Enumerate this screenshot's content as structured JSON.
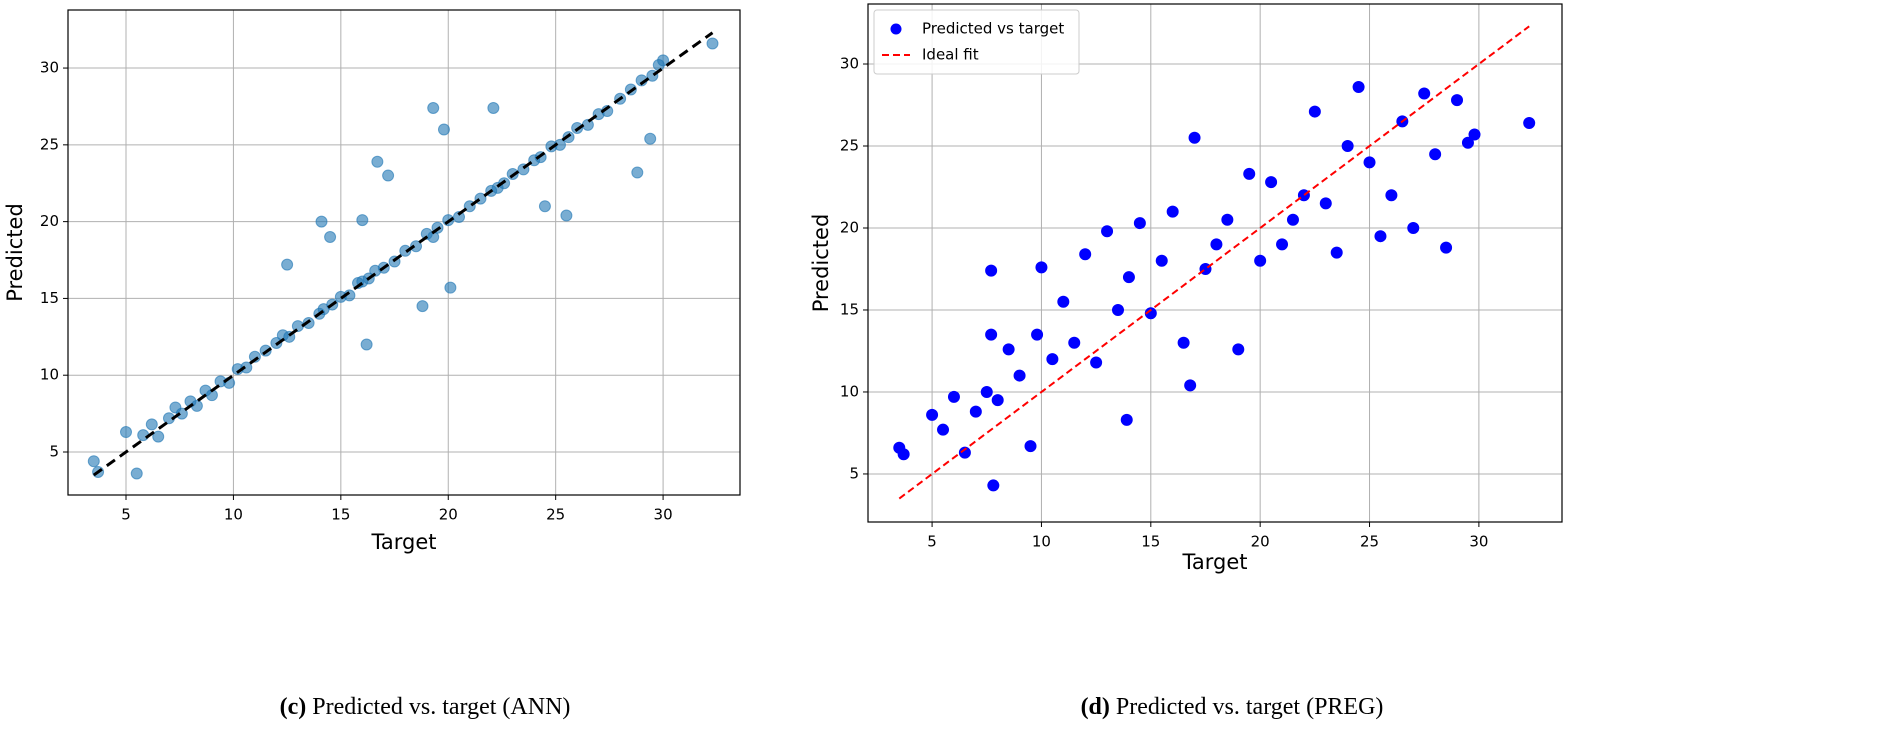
{
  "chart_data": [
    {
      "type": "scatter",
      "xlabel": "Target",
      "ylabel": "Predicted",
      "caption": {
        "label": "(c)",
        "text": "Predicted vs. target (ANN)"
      },
      "xlim": [
        2.3,
        33.58
      ],
      "ylim": [
        2.2,
        33.78
      ],
      "xticks": [
        5,
        10,
        15,
        20,
        25,
        30
      ],
      "yticks": [
        5,
        10,
        15,
        20,
        25,
        30
      ],
      "grid": true,
      "series": [
        {
          "type": "scatter",
          "color": "#1f77b4",
          "alpha": 0.6,
          "x": [
            3.5,
            3.7,
            5.0,
            5.5,
            5.8,
            6.2,
            6.5,
            7.0,
            7.3,
            7.6,
            8.0,
            8.3,
            8.7,
            9.0,
            9.4,
            9.8,
            10.2,
            10.6,
            11.0,
            11.5,
            12.0,
            12.3,
            12.6,
            13.0,
            13.5,
            14.0,
            14.2,
            14.6,
            15.0,
            15.4,
            15.8,
            16.0,
            16.3,
            16.6,
            17.0,
            17.5,
            18.0,
            18.5,
            19.0,
            19.3,
            19.5,
            20.0,
            20.5,
            21.0,
            21.5,
            22.0,
            22.3,
            22.6,
            23.0,
            23.5,
            24.0,
            24.3,
            24.8,
            25.2,
            25.6,
            26.0,
            26.5,
            27.0,
            27.4,
            28.0,
            28.5,
            29.0,
            29.5,
            29.8,
            30.0,
            32.3,
            12.5,
            14.1,
            14.5,
            16.2,
            16.7,
            17.2,
            19.3,
            19.8,
            22.1,
            24.5,
            25.5,
            28.8,
            29.4,
            16.0,
            18.8,
            20.1
          ],
          "values": [
            4.4,
            3.7,
            6.3,
            3.6,
            6.1,
            6.8,
            6.0,
            7.2,
            7.9,
            7.5,
            8.3,
            8.0,
            9.0,
            8.7,
            9.6,
            9.5,
            10.4,
            10.5,
            11.2,
            11.6,
            12.1,
            12.6,
            12.5,
            13.2,
            13.4,
            14.0,
            14.3,
            14.6,
            15.1,
            15.2,
            16.0,
            16.1,
            16.3,
            16.8,
            17.0,
            17.4,
            18.1,
            18.4,
            19.2,
            19.0,
            19.6,
            20.1,
            20.3,
            21.0,
            21.5,
            22.0,
            22.2,
            22.5,
            23.1,
            23.4,
            24.0,
            24.2,
            24.9,
            25.0,
            25.5,
            26.1,
            26.3,
            27.0,
            27.2,
            28.0,
            28.6,
            29.2,
            29.5,
            30.2,
            30.5,
            31.6,
            17.2,
            20.0,
            19.0,
            12.0,
            23.9,
            23.0,
            27.4,
            26.0,
            27.4,
            21.0,
            20.4,
            23.2,
            25.4,
            20.1,
            14.5,
            15.7
          ]
        },
        {
          "type": "line",
          "color": "#000000",
          "dashed": true,
          "x": [
            3.5,
            32.3
          ],
          "values": [
            3.5,
            32.3
          ]
        }
      ]
    },
    {
      "type": "scatter",
      "xlabel": "Target",
      "ylabel": "Predicted",
      "caption": {
        "label": "(d)",
        "text": "Predicted vs. target (PREG)"
      },
      "xlim": [
        2.07,
        33.8
      ],
      "ylim": [
        2.07,
        33.66
      ],
      "xticks": [
        5,
        10,
        15,
        20,
        25,
        30
      ],
      "yticks": [
        5,
        10,
        15,
        20,
        25,
        30
      ],
      "grid": true,
      "legend": "upper left",
      "series": [
        {
          "type": "scatter",
          "name": "Predicted vs target",
          "color": "#0000ff",
          "alpha": 1,
          "x": [
            3.5,
            3.7,
            5.0,
            5.5,
            6.0,
            6.5,
            7.0,
            7.5,
            7.7,
            7.8,
            8.0,
            8.5,
            9.0,
            9.5,
            9.8,
            10.0,
            10.5,
            11.0,
            11.5,
            12.0,
            12.5,
            13.0,
            13.5,
            14.0,
            14.5,
            15.0,
            15.5,
            16.0,
            16.5,
            16.8,
            17.0,
            17.5,
            18.0,
            18.5,
            19.0,
            19.5,
            20.0,
            20.5,
            21.0,
            21.5,
            22.0,
            22.5,
            23.0,
            23.5,
            24.0,
            24.5,
            25.0,
            25.5,
            26.0,
            26.5,
            27.0,
            27.5,
            28.0,
            28.5,
            29.0,
            29.5,
            29.8,
            32.3,
            7.7,
            13.9
          ],
          "values": [
            6.6,
            6.2,
            8.6,
            7.7,
            9.7,
            6.3,
            8.8,
            10.0,
            17.4,
            4.3,
            9.5,
            12.6,
            11.0,
            6.7,
            13.5,
            17.6,
            12.0,
            15.5,
            13.0,
            18.4,
            11.8,
            19.8,
            15.0,
            17.0,
            20.3,
            14.8,
            18.0,
            21.0,
            13.0,
            10.4,
            25.5,
            17.5,
            19.0,
            20.5,
            12.6,
            23.3,
            18.0,
            22.8,
            19.0,
            20.5,
            22.0,
            27.1,
            21.5,
            18.5,
            25.0,
            28.6,
            24.0,
            19.5,
            22.0,
            26.5,
            20.0,
            28.2,
            24.5,
            18.8,
            27.8,
            25.2,
            25.7,
            26.4,
            13.5,
            8.3
          ]
        },
        {
          "type": "line",
          "name": "Ideal fit",
          "color": "#ff0000",
          "dashed": true,
          "x": [
            3.5,
            32.3
          ],
          "values": [
            3.5,
            32.3
          ]
        }
      ]
    }
  ]
}
